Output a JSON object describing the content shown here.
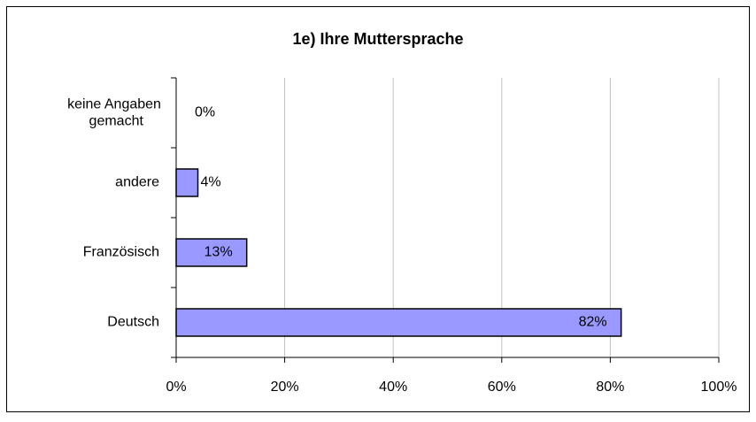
{
  "chart_data": {
    "type": "bar",
    "orientation": "horizontal",
    "title": "1e) Ihre Muttersprache",
    "categories": [
      "keine Angaben gemacht",
      "andere",
      "Französisch",
      "Deutsch"
    ],
    "values": [
      0,
      4,
      13,
      82
    ],
    "value_labels": [
      "0%",
      "4%",
      "13%",
      "82%"
    ],
    "color": "#9999ff",
    "xlim": [
      0,
      100
    ],
    "xticks": [
      {
        "value": 0,
        "label": "0%"
      },
      {
        "value": 20,
        "label": "20%"
      },
      {
        "value": 40,
        "label": "40%"
      },
      {
        "value": 60,
        "label": "60%"
      },
      {
        "value": 80,
        "label": "80%"
      },
      {
        "value": 100,
        "label": "100%"
      }
    ],
    "grid": true
  }
}
